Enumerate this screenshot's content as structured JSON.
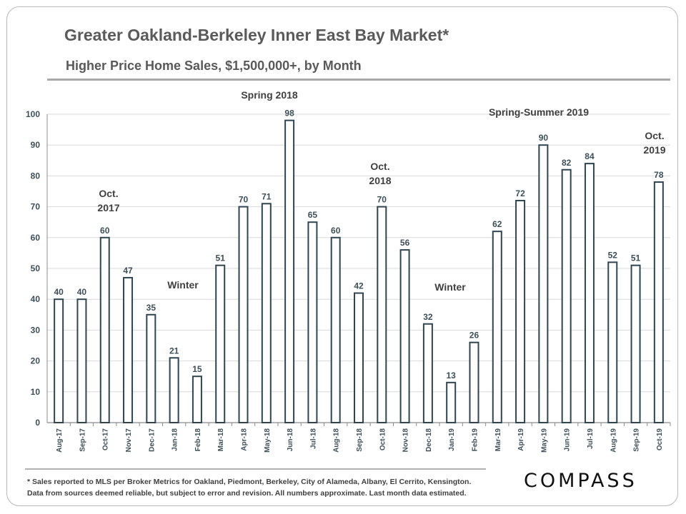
{
  "title": "Greater Oakland-Berkeley Inner East Bay Market*",
  "subtitle": "Higher Price Home Sales, $1,500,000+, by Month",
  "footnote": {
    "line1": "* Sales reported to MLS per Broker Metrics for Oakland, Piedmont, Berkeley, City of Alameda, Albany, El Cerrito, Kensington.",
    "line2": "Data from sources deemed reliable, but subject to error and revision. All numbers approximate. Last month data estimated."
  },
  "logo": "COMPASS",
  "chart_data": {
    "type": "bar",
    "categories": [
      "Aug-17",
      "Sep-17",
      "Oct-17",
      "Nov-17",
      "Dec-17",
      "Jan-18",
      "Feb-18",
      "Mar-18",
      "Apr-18",
      "May-18",
      "Jun-18",
      "Jul-18",
      "Aug-18",
      "Sep-18",
      "Oct-18",
      "Nov-18",
      "Dec-18",
      "Jan-19",
      "Feb-19",
      "Mar-19",
      "Apr-19",
      "May-19",
      "Jun-19",
      "Jul-19",
      "Aug-19",
      "Sep-19",
      "Oct-19"
    ],
    "values": [
      40,
      40,
      60,
      47,
      35,
      21,
      15,
      51,
      70,
      71,
      98,
      65,
      60,
      42,
      70,
      56,
      32,
      13,
      26,
      62,
      72,
      90,
      82,
      84,
      52,
      51,
      78
    ],
    "data_labels": [
      "40",
      "40",
      "60",
      "47",
      "35",
      "21",
      "15",
      "51",
      "70",
      "71",
      "98",
      "65",
      "60",
      "42",
      "70",
      "56",
      "32",
      "13",
      "26",
      "62",
      "72",
      "90",
      "82",
      "84",
      "52",
      "51",
      "78"
    ],
    "yticks": [
      "0",
      "10",
      "20",
      "30",
      "40",
      "50",
      "60",
      "70",
      "80",
      "90",
      "100"
    ],
    "ylim": [
      0,
      100
    ],
    "grid": true,
    "bar_fill": "#ffffff",
    "bar_stroke": "#2f4550",
    "label_color": "#3d4f58",
    "annotations": [
      {
        "text": [
          "Oct.",
          "2017"
        ]
      },
      {
        "text": [
          "Winter"
        ]
      },
      {
        "text": [
          "Spring 2018"
        ]
      },
      {
        "text": [
          "Oct.",
          "2018"
        ]
      },
      {
        "text": [
          "Winter"
        ]
      },
      {
        "text": [
          "Spring-Summer 2019"
        ]
      },
      {
        "text": [
          "Oct.",
          "2019"
        ]
      }
    ]
  }
}
